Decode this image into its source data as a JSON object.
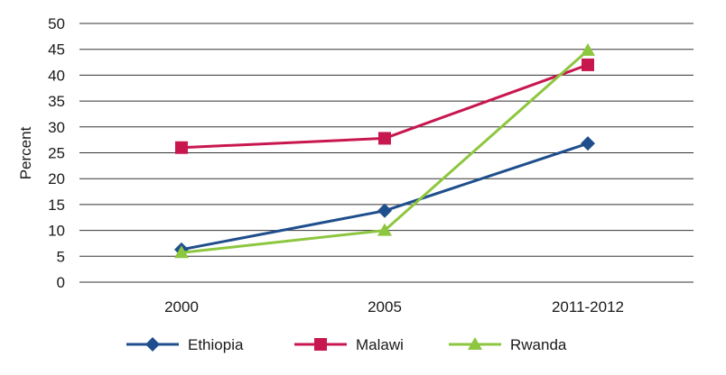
{
  "chart_data": {
    "type": "line",
    "categories": [
      "2000",
      "2005",
      "2011-2012"
    ],
    "ylabel": "Percent",
    "xlabel": "",
    "ylim": [
      0,
      50
    ],
    "yticks": [
      0,
      5,
      10,
      15,
      20,
      25,
      30,
      35,
      40,
      45,
      50
    ],
    "grid": "horizontal",
    "legend_position": "bottom",
    "series": [
      {
        "name": "Ethiopia",
        "values": [
          6.3,
          13.8,
          26.8
        ],
        "color": "#1f4e8c",
        "marker": "diamond"
      },
      {
        "name": "Malawi",
        "values": [
          26,
          27.8,
          42
        ],
        "color": "#c8174f",
        "marker": "square"
      },
      {
        "name": "Rwanda",
        "values": [
          5.7,
          10,
          44.8
        ],
        "color": "#8dc63f",
        "marker": "triangle"
      }
    ]
  }
}
